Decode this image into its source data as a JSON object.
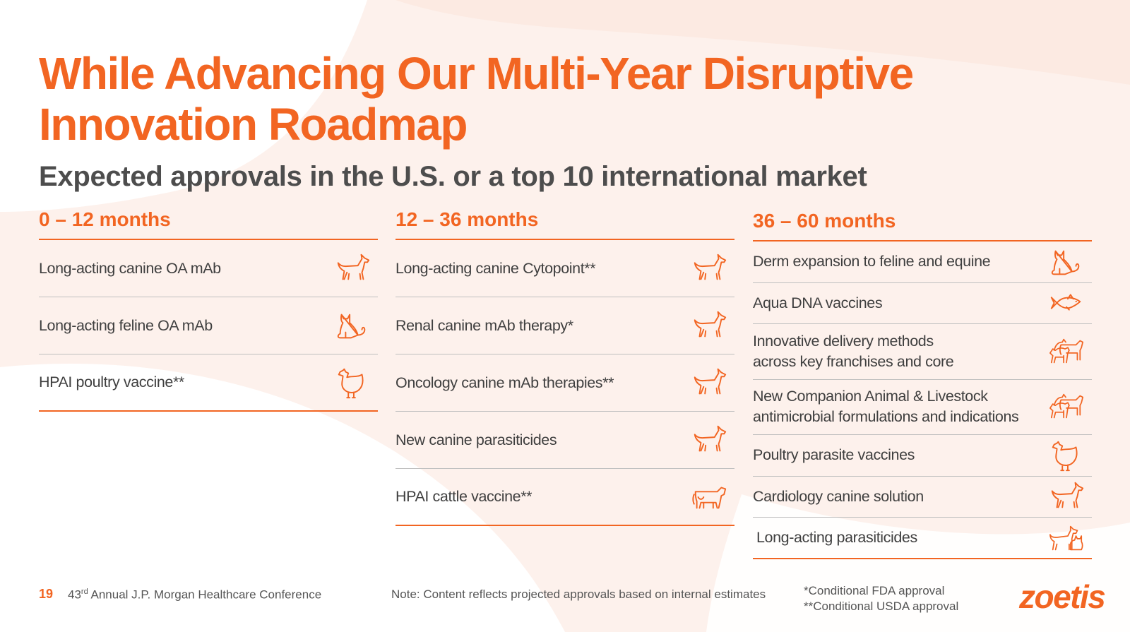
{
  "slide": {
    "title_line1": "While Advancing Our Multi-Year Disruptive",
    "title_line2": "Innovation Roadmap",
    "subtitle": "Expected approvals in the U.S. or a top 10 international market"
  },
  "columns": [
    {
      "heading": "0 – 12 months",
      "items": [
        {
          "label": "Long-acting canine OA mAb",
          "icon": "dog-icon"
        },
        {
          "label": "Long-acting feline OA mAb",
          "icon": "cat-icon"
        },
        {
          "label": "HPAI poultry vaccine**",
          "icon": "chicken-icon"
        }
      ]
    },
    {
      "heading": "12 – 36 months",
      "items": [
        {
          "label": "Long-acting canine Cytopoint**",
          "icon": "dog-icon"
        },
        {
          "label": "Renal canine mAb therapy*",
          "icon": "dog-icon"
        },
        {
          "label": "Oncology canine mAb therapies**",
          "icon": "dog-icon"
        },
        {
          "label": "New canine parasiticides",
          "icon": "dog-icon"
        },
        {
          "label": "HPAI cattle vaccine**",
          "icon": "cow-icon"
        }
      ]
    },
    {
      "heading": "36 – 60 months",
      "items": [
        {
          "label": "Derm expansion to feline and equine",
          "icon": "cat-icon"
        },
        {
          "label": "Aqua DNA vaccines",
          "icon": "fish-icon"
        },
        {
          "label": "Innovative delivery methods across key franchises and core",
          "line1": "Innovative delivery methods",
          "line2": "across key franchises and core",
          "icon": "farm-animals-icon"
        },
        {
          "label": "New Companion Animal & Livestock antimicrobial formulations and indications",
          "line1": "New Companion Animal & Livestock",
          "line2": "antimicrobial formulations and indications",
          "icon": "farm-animals-icon"
        },
        {
          "label": "Poultry parasite vaccines",
          "icon": "chicken-icon"
        },
        {
          "label": "Cardiology canine solution",
          "icon": "dog-icon"
        },
        {
          "label": "Long-acting parasiticides",
          "icon": "dog-and-cat-icon"
        }
      ]
    }
  ],
  "footer": {
    "page_number": "19",
    "conference_prefix": "43",
    "conference_sup": "rd",
    "conference_suffix": " Annual J.P. Morgan Healthcare Conference",
    "note": "Note: Content reflects projected approvals based on internal estimates",
    "footnote1": "*Conditional FDA approval",
    "footnote2": "**Conditional USDA approval",
    "logo_text": "zoetis"
  },
  "colors": {
    "accent": "#f26522",
    "background": "#fdf1ec",
    "text": "#3f3f3f"
  }
}
